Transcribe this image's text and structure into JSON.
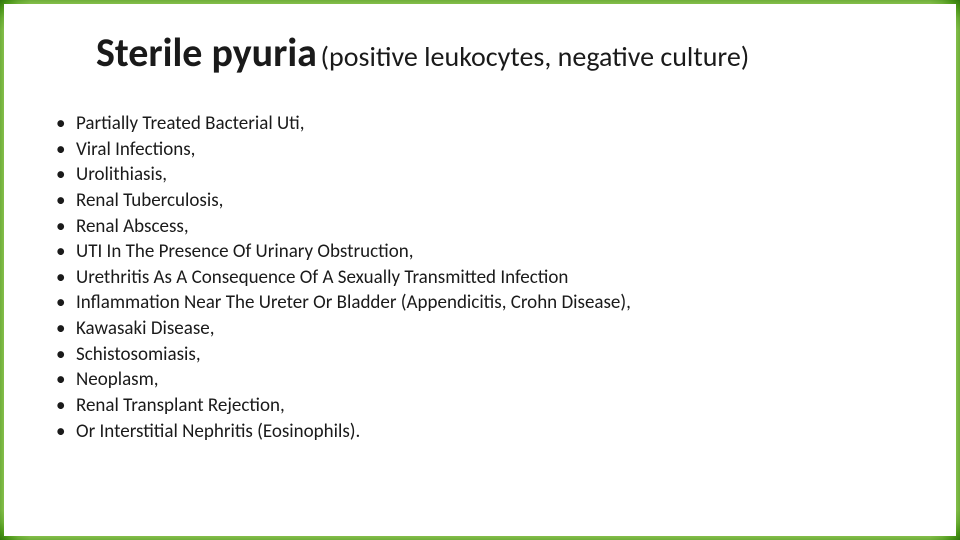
{
  "slide": {
    "title_main": "Sterile pyuria",
    "title_sub": "(positive leukocytes, negative culture)",
    "bullets": [
      "Partially Treated Bacterial Uti,",
      "Viral Infections,",
      "Urolithiasis,",
      "Renal Tuberculosis,",
      "Renal Abscess,",
      "UTI In The Presence Of Urinary Obstruction,",
      "Urethritis As A Consequence Of A Sexually Transmitted Infection",
      "Inflammation Near The Ureter Or Bladder (Appendicitis, Crohn Disease),",
      "Kawasaki Disease,",
      "Schistosomiasis,",
      "Neoplasm,",
      "Renal Transplant Rejection,",
      "Or Interstitial Nephritis (Eosinophils)."
    ]
  },
  "style": {
    "frame_gradient_colors": [
      "#6fae3a",
      "#9bd05a",
      "#d8eec0",
      "#ffffff"
    ],
    "text_color": "#1a1a1a",
    "title_fontsize": 40,
    "subtitle_fontsize": 28,
    "bullet_fontsize": 19,
    "background_color": "#ffffff"
  }
}
